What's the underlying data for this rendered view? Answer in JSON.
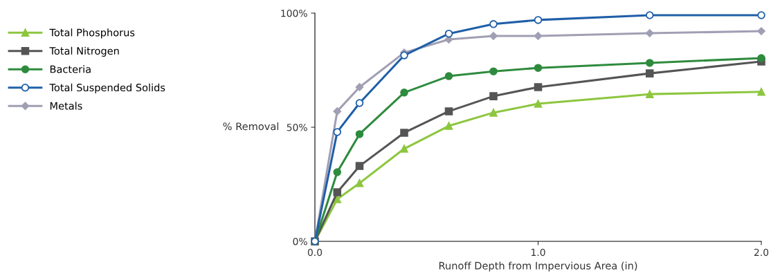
{
  "chart_data": {
    "type": "line",
    "xlabel": "Runoff Depth from Impervious Area (in)",
    "ylabel": "% Removal",
    "x": [
      0,
      0.1,
      0.2,
      0.4,
      0.6,
      0.8,
      1.0,
      1.5,
      2.0
    ],
    "series": [
      {
        "name": "Total Phosphorus",
        "color": "#8dc63f",
        "marker": "triangle",
        "values": [
          0,
          18.5,
          25.5,
          40.6,
          50.6,
          56.4,
          60.3,
          64.5,
          65.5
        ]
      },
      {
        "name": "Total Nitrogen",
        "color": "#555555",
        "marker": "square",
        "values": [
          0,
          21.5,
          33,
          47.6,
          57,
          63.6,
          67.6,
          73.6,
          78.8
        ]
      },
      {
        "name": "Bacteria",
        "color": "#2e8b3e",
        "marker": "circle",
        "values": [
          0,
          30.3,
          47,
          65.2,
          72.4,
          74.5,
          76,
          78.2,
          80.3
        ]
      },
      {
        "name": "Total Suspended Solids",
        "color": "#1f5fa8",
        "marker": "open circle",
        "values": [
          0,
          47.9,
          60.6,
          81.5,
          91,
          95.2,
          97,
          99.1,
          99.1
        ]
      },
      {
        "name": "Metals",
        "color": "#a09fb3",
        "marker": "diamond",
        "values": [
          0,
          57,
          67.6,
          82.7,
          88.5,
          90,
          90,
          91.2,
          92.1
        ]
      }
    ],
    "xlim": [
      0,
      2.0
    ],
    "xticks": [
      {
        "value": 0,
        "label": "0.0"
      },
      {
        "value": 1.0,
        "label": "1.0"
      },
      {
        "value": 2.0,
        "label": "2.0"
      }
    ],
    "ylim": [
      0,
      100
    ],
    "yticks": [
      {
        "value": 0,
        "label": "0%"
      },
      {
        "value": 50,
        "label": "50%"
      },
      {
        "value": 100,
        "label": "100%"
      }
    ],
    "grid": false,
    "legend": "left",
    "line_style": "solid"
  }
}
